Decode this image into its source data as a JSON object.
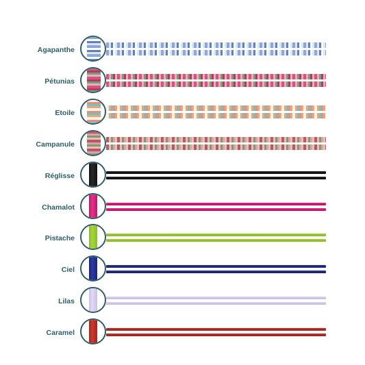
{
  "items": [
    {
      "label": "Agapanthe",
      "type": "liberty",
      "colors": [
        "#8ea6d8",
        "#dbe6f6",
        "#5f7fbf",
        "#ffffff"
      ]
    },
    {
      "label": "Pétunias",
      "type": "liberty",
      "colors": [
        "#d2567a",
        "#f3a9bd",
        "#6aa67a",
        "#b53a5e"
      ]
    },
    {
      "label": "Etoile",
      "type": "liberty",
      "colors": [
        "#fbf4e6",
        "#e9a87a",
        "#6fc3c0",
        "#f08a7a"
      ]
    },
    {
      "label": "Campanule",
      "type": "liberty",
      "colors": [
        "#b8586a",
        "#e6c1b5",
        "#7f9b6a",
        "#e1a0a8"
      ]
    },
    {
      "label": "Réglisse",
      "type": "solid",
      "colors": [
        "#111111",
        "#2a2a2a"
      ]
    },
    {
      "label": "Chamalot",
      "type": "solid",
      "colors": [
        "#c2146a",
        "#e0338a"
      ]
    },
    {
      "label": "Pistache",
      "type": "solid",
      "colors": [
        "#8cbc26",
        "#a8d53a"
      ]
    },
    {
      "label": "Ciel",
      "type": "solid",
      "colors": [
        "#1a237e",
        "#2e3aa0"
      ]
    },
    {
      "label": "Lilas",
      "type": "solid",
      "colors": [
        "#c9bfe6",
        "#e2dbf4"
      ]
    },
    {
      "label": "Caramel",
      "type": "solid",
      "colors": [
        "#a8231c",
        "#c93a2e"
      ]
    }
  ]
}
